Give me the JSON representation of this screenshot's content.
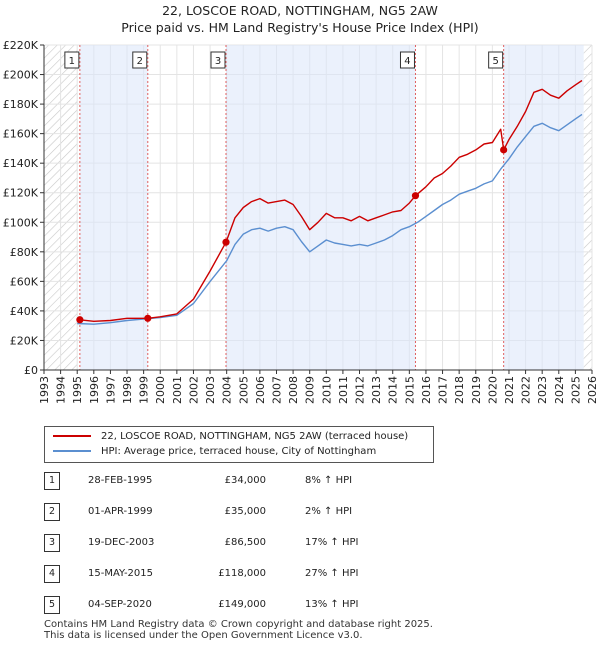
{
  "title": {
    "line1": "22, LOSCOE ROAD, NOTTINGHAM, NG5 2AW",
    "line2": "Price paid vs. HM Land Registry's House Price Index (HPI)"
  },
  "chart_data": {
    "type": "line",
    "title": "22, LOSCOE ROAD, NOTTINGHAM, NG5 2AW",
    "subtitle": "Price paid vs. HM Land Registry's House Price Index (HPI)",
    "xlim": [
      1993,
      2026
    ],
    "ylim": [
      0,
      220000
    ],
    "x_ticks": [
      "1993",
      "1994",
      "1995",
      "1996",
      "1997",
      "1998",
      "1999",
      "2000",
      "2001",
      "2002",
      "2003",
      "2004",
      "2005",
      "2006",
      "2007",
      "2008",
      "2009",
      "2010",
      "2011",
      "2012",
      "2013",
      "2014",
      "2015",
      "2016",
      "2017",
      "2018",
      "2019",
      "2020",
      "2021",
      "2022",
      "2023",
      "2024",
      "2025",
      "2026"
    ],
    "y_ticks": [
      {
        "value": 0,
        "label": "£0"
      },
      {
        "value": 20000,
        "label": "£20K"
      },
      {
        "value": 40000,
        "label": "£40K"
      },
      {
        "value": 60000,
        "label": "£60K"
      },
      {
        "value": 80000,
        "label": "£80K"
      },
      {
        "value": 100000,
        "label": "£100K"
      },
      {
        "value": 120000,
        "label": "£120K"
      },
      {
        "value": 140000,
        "label": "£140K"
      },
      {
        "value": 160000,
        "label": "£160K"
      },
      {
        "value": 180000,
        "label": "£180K"
      },
      {
        "value": 200000,
        "label": "£200K"
      },
      {
        "value": 220000,
        "label": "£220K"
      }
    ],
    "data_start": 1995.0,
    "data_end": 2025.5,
    "series": [
      {
        "name": "22, LOSCOE ROAD, NOTTINGHAM, NG5 2AW (terraced house)",
        "color": "#cc0000",
        "x": [
          1995.16,
          1996,
          1997,
          1998,
          1999.25,
          2000,
          2001,
          2002,
          2003,
          2003.96,
          2004.5,
          2005,
          2005.5,
          2006,
          2006.5,
          2007,
          2007.5,
          2008,
          2008.5,
          2009,
          2009.5,
          2010,
          2010.5,
          2011,
          2011.5,
          2012,
          2012.5,
          2013,
          2013.5,
          2014,
          2014.5,
          2015,
          2015.37,
          2016,
          2016.5,
          2017,
          2017.5,
          2018,
          2018.5,
          2019,
          2019.5,
          2020,
          2020.5,
          2020.68,
          2021,
          2021.5,
          2022,
          2022.5,
          2023,
          2023.5,
          2024,
          2024.5,
          2025,
          2025.4
        ],
        "y": [
          34000,
          33000,
          33500,
          35000,
          35000,
          36000,
          38000,
          48000,
          67000,
          86500,
          103000,
          110000,
          114000,
          116000,
          113000,
          114000,
          115000,
          112000,
          104000,
          95000,
          100000,
          106000,
          103000,
          103000,
          101000,
          104000,
          101000,
          103000,
          105000,
          107000,
          108000,
          113000,
          118000,
          124000,
          130000,
          133000,
          138000,
          144000,
          146000,
          149000,
          153000,
          154000,
          163000,
          149000,
          156000,
          165000,
          175000,
          188000,
          190000,
          186000,
          184000,
          189000,
          193000,
          196000
        ]
      },
      {
        "name": "HPI: Average price, terraced house, City of Nottingham",
        "color": "#5b8fd0",
        "x": [
          1995,
          1996,
          1997,
          1998,
          1999,
          2000,
          2001,
          2002,
          2003,
          2004,
          2004.5,
          2005,
          2005.5,
          2006,
          2006.5,
          2007,
          2007.5,
          2008,
          2008.5,
          2009,
          2009.5,
          2010,
          2010.5,
          2011,
          2011.5,
          2012,
          2012.5,
          2013,
          2013.5,
          2014,
          2014.5,
          2015,
          2015.5,
          2016,
          2016.5,
          2017,
          2017.5,
          2018,
          2018.5,
          2019,
          2019.5,
          2020,
          2020.5,
          2021,
          2021.5,
          2022,
          2022.5,
          2023,
          2023.5,
          2024,
          2024.5,
          2025,
          2025.4
        ],
        "y": [
          31500,
          31000,
          32000,
          33500,
          34500,
          35500,
          37000,
          45000,
          60000,
          74000,
          85000,
          92000,
          95000,
          96000,
          94000,
          96000,
          97000,
          95000,
          87000,
          80000,
          84000,
          88000,
          86000,
          85000,
          84000,
          85000,
          84000,
          86000,
          88000,
          91000,
          95000,
          97000,
          100000,
          104000,
          108000,
          112000,
          115000,
          119000,
          121000,
          123000,
          126000,
          128000,
          136000,
          143000,
          151000,
          158000,
          165000,
          167000,
          164000,
          162000,
          166000,
          170000,
          173000
        ]
      }
    ],
    "sales": [
      {
        "label": "1",
        "x": 1995.16,
        "price": 34000
      },
      {
        "label": "2",
        "x": 1999.25,
        "price": 35000
      },
      {
        "label": "3",
        "x": 2003.96,
        "price": 86500
      },
      {
        "label": "4",
        "x": 2015.37,
        "price": 118000
      },
      {
        "label": "5",
        "x": 2020.68,
        "price": 149000
      }
    ]
  },
  "legend": {
    "property": "22, LOSCOE ROAD, NOTTINGHAM, NG5 2AW (terraced house)",
    "hpi": "HPI: Average price, terraced house, City of Nottingham",
    "property_color": "#cc0000",
    "hpi_color": "#5b8fd0"
  },
  "sales_table": [
    {
      "num": "1",
      "date": "28-FEB-1995",
      "price": "£34,000",
      "hpi": "8% ↑ HPI"
    },
    {
      "num": "2",
      "date": "01-APR-1999",
      "price": "£35,000",
      "hpi": "2% ↑ HPI"
    },
    {
      "num": "3",
      "date": "19-DEC-2003",
      "price": "£86,500",
      "hpi": "17% ↑ HPI"
    },
    {
      "num": "4",
      "date": "15-MAY-2015",
      "price": "£118,000",
      "hpi": "27% ↑ HPI"
    },
    {
      "num": "5",
      "date": "04-SEP-2020",
      "price": "£149,000",
      "hpi": "13% ↑ HPI"
    }
  ],
  "footer": {
    "line1": "Contains HM Land Registry data © Crown copyright and database right 2025.",
    "line2": "This data is licensed under the Open Government Licence v3.0."
  }
}
